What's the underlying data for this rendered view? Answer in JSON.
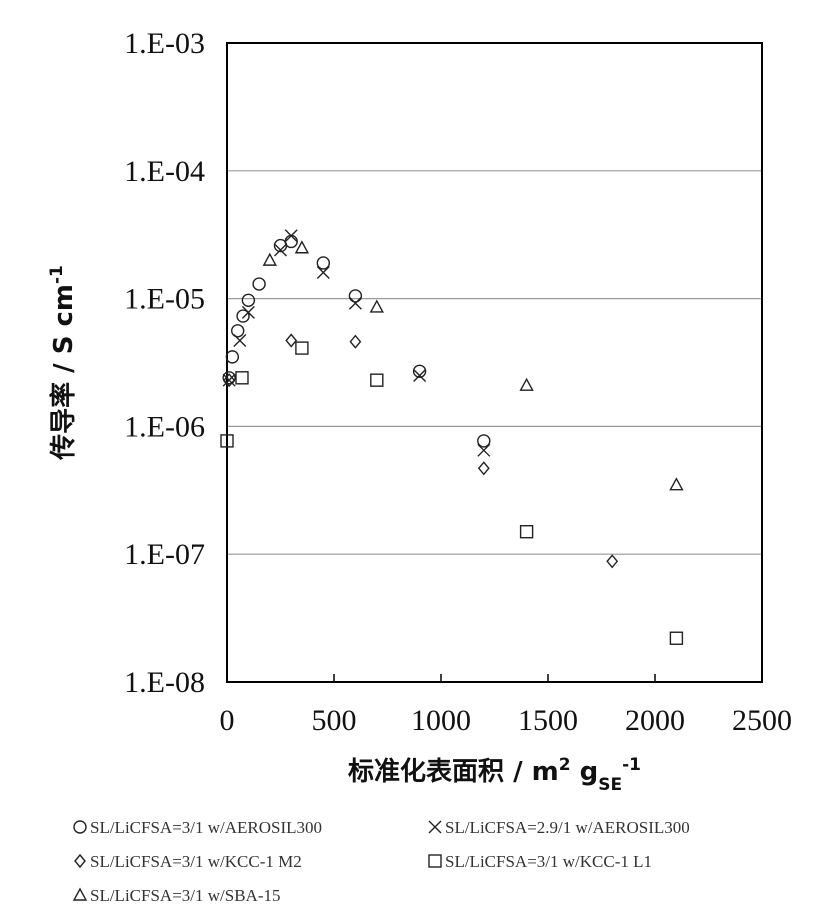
{
  "chart_data": {
    "type": "scatter",
    "log_y": true,
    "grid": true,
    "ylabel": [
      {
        "text": "传导率 / S cm"
      },
      {
        "text": "-1",
        "script": "super"
      }
    ],
    "xlabel": [
      {
        "text": "标准化表面积 / m"
      },
      {
        "text": "2",
        "script": "super"
      },
      {
        "text": " g"
      },
      {
        "text": "SE",
        "script": "sub"
      },
      {
        "text": "-1",
        "script": "super"
      }
    ],
    "xlim": [
      0,
      2500
    ],
    "xticks": [
      0,
      500,
      1000,
      1500,
      2000,
      2500
    ],
    "ylim": [
      1e-08,
      0.001
    ],
    "yticks": [
      {
        "value": 1e-08,
        "label": "1.E-08"
      },
      {
        "value": 1e-07,
        "label": "1.E-07"
      },
      {
        "value": 1e-06,
        "label": "1.E-06"
      },
      {
        "value": 1e-05,
        "label": "1.E-05"
      },
      {
        "value": 0.0001,
        "label": "1.E-04"
      },
      {
        "value": 0.001,
        "label": "1.E-03"
      }
    ],
    "series": [
      {
        "name": "SL/LiCFSA=3/1 w/AEROSIL300",
        "marker": "circle",
        "color": "#222222",
        "x": [
          10,
          25,
          50,
          75,
          100,
          150,
          250,
          300,
          450,
          600,
          900,
          1200
        ],
        "values": [
          2.4e-06,
          3.5e-06,
          5.6e-06,
          7.3e-06,
          9.7e-06,
          1.3e-05,
          2.6e-05,
          2.8e-05,
          1.9e-05,
          1.05e-05,
          2.7e-06,
          7.7e-07
        ]
      },
      {
        "name": "SL/LiCFSA=2.9/1 w/AEROSIL300",
        "marker": "cross",
        "color": "#222222",
        "x": [
          10,
          60,
          100,
          250,
          300,
          450,
          600,
          900,
          1200
        ],
        "values": [
          2.3e-06,
          4.7e-06,
          7.8e-06,
          2.4e-05,
          3.1e-05,
          1.6e-05,
          9.2e-06,
          2.5e-06,
          6.5e-07
        ]
      },
      {
        "name": "SL/LiCFSA=3/1 w/KCC-1 M2",
        "marker": "diamond",
        "color": "#222222",
        "x": [
          10,
          300,
          600,
          1200,
          1800
        ],
        "values": [
          2.3e-06,
          4.7e-06,
          4.6e-06,
          4.7e-07,
          8.8e-08
        ]
      },
      {
        "name": "SL/LiCFSA=3/1 w/KCC-1 L1",
        "marker": "square",
        "color": "#222222",
        "x": [
          0,
          70,
          350,
          700,
          1400,
          2100
        ],
        "values": [
          7.7e-07,
          2.4e-06,
          4.1e-06,
          2.3e-06,
          1.5e-07,
          2.2e-08
        ]
      },
      {
        "name": "SL/LiCFSA=3/1 w/SBA-15",
        "marker": "triangle",
        "color": "#222222",
        "x": [
          200,
          350,
          700,
          1400,
          2100
        ],
        "values": [
          2e-05,
          2.5e-05,
          8.6e-06,
          2.1e-06,
          3.5e-07
        ]
      }
    ]
  }
}
